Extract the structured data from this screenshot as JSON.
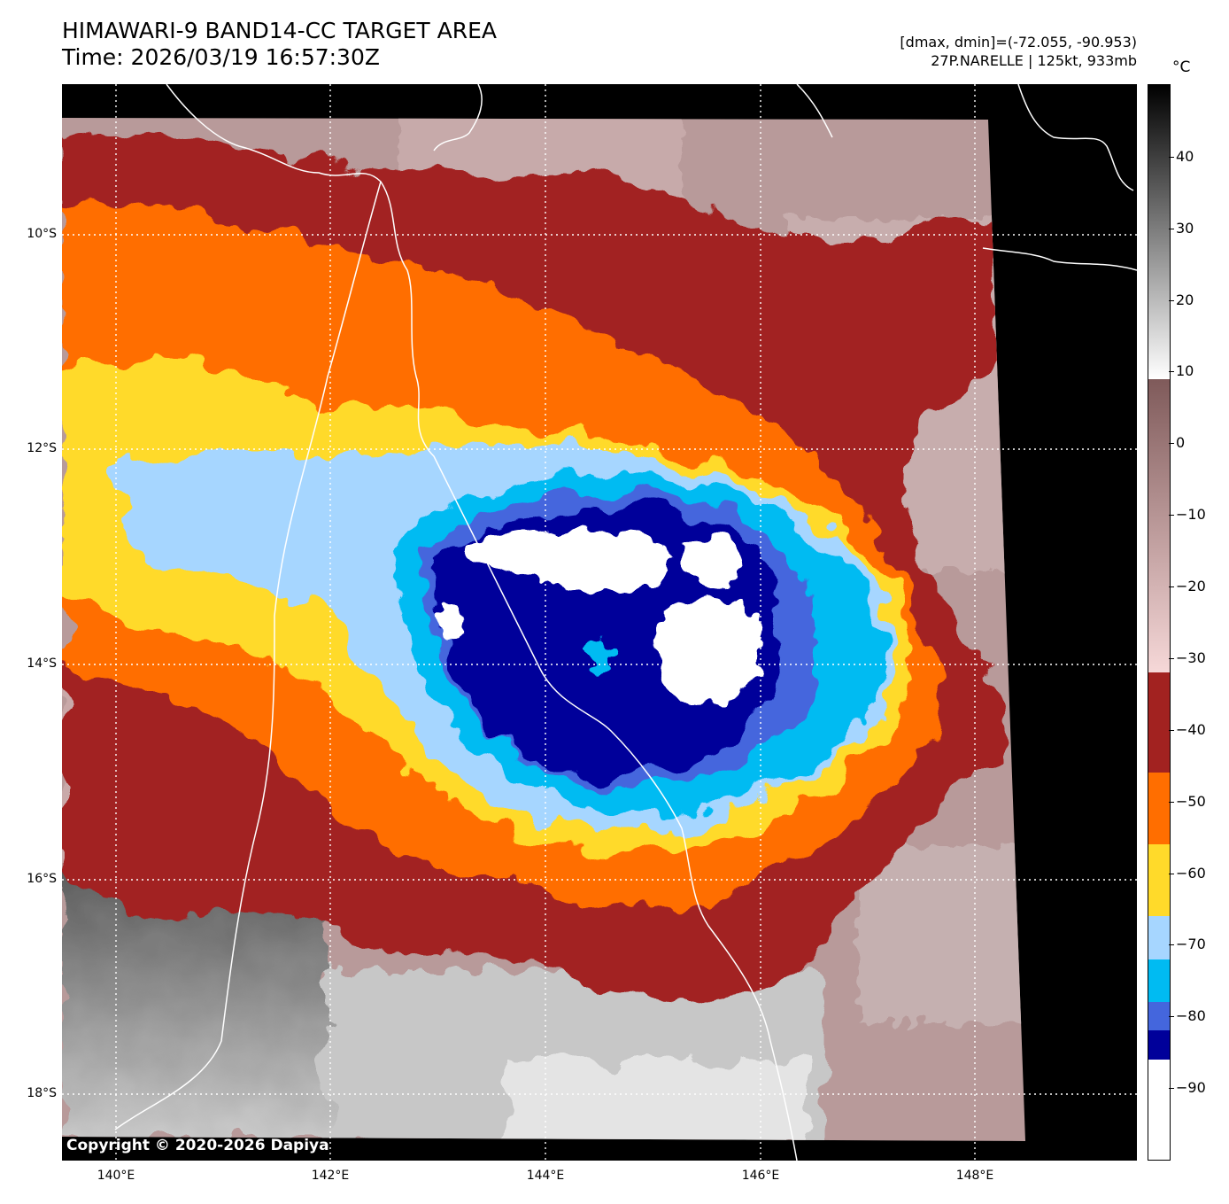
{
  "header": {
    "title_line1": "HIMAWARI-9 BAND14-CC TARGET AREA",
    "title_line2": "Time: 2026/03/19 16:57:30Z",
    "range_info": "[dmax, dmin]=(-72.055, -90.953)",
    "storm_info": "27P.NARELLE | 125kt, 933mb"
  },
  "colorbar": {
    "unit": "°C",
    "ticks": [
      "40",
      "30",
      "20",
      "10",
      "0",
      "−10",
      "−20",
      "−30",
      "−40",
      "−50",
      "−60",
      "−70",
      "−80",
      "−90"
    ],
    "tick_values": [
      40,
      30,
      20,
      10,
      0,
      -10,
      -20,
      -30,
      -40,
      -50,
      -60,
      -70,
      -80,
      -90
    ],
    "range": [
      -100,
      50
    ],
    "segments": [
      {
        "from": -100,
        "to": -86,
        "color": "#ffffff"
      },
      {
        "from": -86,
        "to": -82,
        "color": "#00009a"
      },
      {
        "from": -82,
        "to": -78,
        "color": "#4466dd"
      },
      {
        "from": -78,
        "to": -72,
        "color": "#00bbf2"
      },
      {
        "from": -72,
        "to": -66,
        "color": "#a6d6ff"
      },
      {
        "from": -66,
        "to": -56,
        "color": "#ffda2a"
      },
      {
        "from": -56,
        "to": -46,
        "color": "#ff6e00"
      },
      {
        "from": -46,
        "to": -32,
        "color": "#a22220"
      },
      {
        "from": -32,
        "to": 9,
        "gradient": [
          "#f6d8d8",
          "#7f5a5a"
        ]
      },
      {
        "from": 9,
        "to": 50,
        "gradient": [
          "#ffffff",
          "#000000"
        ]
      }
    ]
  },
  "map": {
    "lat_labels": [
      "10°S",
      "12°S",
      "14°S",
      "16°S",
      "18°S"
    ],
    "lon_labels": [
      "140°E",
      "142°E",
      "144°E",
      "146°E",
      "148°E"
    ],
    "copyright": "Copyright © 2020-2026 Dapiya",
    "colors": {
      "black": "#000000",
      "white": "#ffffff",
      "dark_blue": "#00009a",
      "blue": "#4466dd",
      "cyan": "#00bbf2",
      "light_blue": "#a6d6ff",
      "yellow": "#ffda2a",
      "orange": "#ff6e00",
      "red": "#a22220",
      "pink": "#e8c8c8",
      "gray": "#8a8a8a"
    }
  }
}
